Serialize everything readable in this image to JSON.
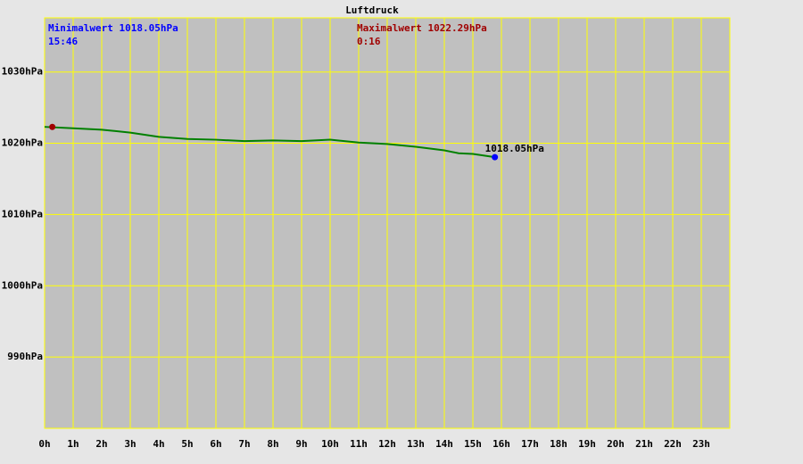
{
  "chart_data": {
    "type": "line",
    "title": "Luftdruck",
    "x": [
      0,
      1,
      2,
      3,
      4,
      5,
      6,
      7,
      8,
      9,
      10,
      11,
      12,
      13,
      14,
      14.5,
      15,
      15.77
    ],
    "series": [
      {
        "color": "#008000",
        "values": [
          1022.3,
          1022.1,
          1021.9,
          1021.5,
          1020.9,
          1020.6,
          1020.5,
          1020.3,
          1020.4,
          1020.3,
          1020.5,
          1020.1,
          1019.9,
          1019.5,
          1019.0,
          1018.6,
          1018.5,
          1018.05
        ]
      }
    ],
    "xlim": [
      0,
      24
    ],
    "xticks": [
      {
        "value": 0,
        "label": "0h"
      },
      {
        "value": 1,
        "label": "1h"
      },
      {
        "value": 2,
        "label": "2h"
      },
      {
        "value": 3,
        "label": "3h"
      },
      {
        "value": 4,
        "label": "4h"
      },
      {
        "value": 5,
        "label": "5h"
      },
      {
        "value": 6,
        "label": "6h"
      },
      {
        "value": 7,
        "label": "7h"
      },
      {
        "value": 8,
        "label": "8h"
      },
      {
        "value": 9,
        "label": "9h"
      },
      {
        "value": 10,
        "label": "10h"
      },
      {
        "value": 11,
        "label": "11h"
      },
      {
        "value": 12,
        "label": "12h"
      },
      {
        "value": 13,
        "label": "13h"
      },
      {
        "value": 14,
        "label": "14h"
      },
      {
        "value": 15,
        "label": "15h"
      },
      {
        "value": 16,
        "label": "16h"
      },
      {
        "value": 17,
        "label": "17h"
      },
      {
        "value": 18,
        "label": "18h"
      },
      {
        "value": 19,
        "label": "19h"
      },
      {
        "value": 20,
        "label": "20h"
      },
      {
        "value": 21,
        "label": "21h"
      },
      {
        "value": 22,
        "label": "22h"
      },
      {
        "value": 23,
        "label": "23h"
      }
    ],
    "ylim": [
      980,
      1037.6
    ],
    "yticks": [
      {
        "value": 990,
        "label": "990hPa"
      },
      {
        "value": 1000,
        "label": "1000hPa"
      },
      {
        "value": 1010,
        "label": "1010hPa"
      },
      {
        "value": 1020,
        "label": "1020hPa"
      },
      {
        "value": 1030,
        "label": "1030hPa"
      }
    ],
    "grid": true,
    "min_point": {
      "x": 15.77,
      "value": 1018.05,
      "label": "1018.05hPa",
      "color": "#0000ff",
      "text": "Minimalwert 1018.05hPa",
      "time": "15:46"
    },
    "max_point": {
      "x": 0.27,
      "value": 1022.29,
      "color": "#a00000",
      "text": "Maximalwert 1022.29hPa",
      "time": "0:16"
    }
  }
}
